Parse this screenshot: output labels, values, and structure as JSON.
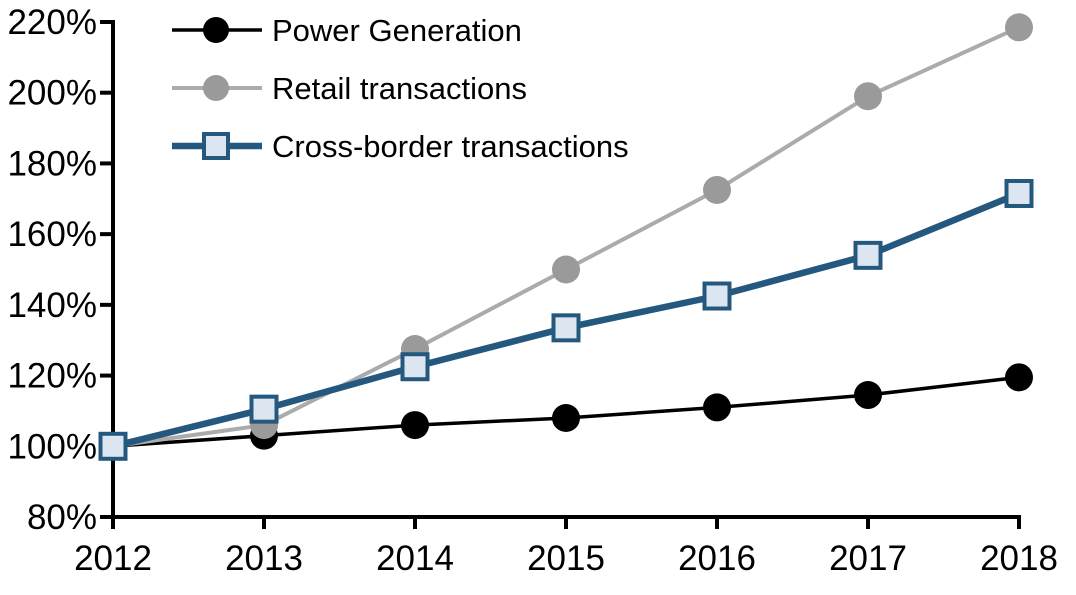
{
  "chart_data": {
    "type": "line",
    "title": "",
    "xlabel": "",
    "ylabel": "",
    "x": [
      2012,
      2013,
      2014,
      2015,
      2016,
      2017,
      2018
    ],
    "x_tick_labels": [
      "2012",
      "2013",
      "2014",
      "2015",
      "2016",
      "2017",
      "2018"
    ],
    "ylim": [
      80,
      220
    ],
    "ytick_step": 20,
    "ytick_suffix": "%",
    "grid": false,
    "legend_position": "top-left-inside",
    "axis_color": "#000000",
    "background_color": "#ffffff",
    "series": [
      {
        "name": "Power Generation",
        "values": [
          100,
          103,
          106,
          108,
          111,
          114.5,
          119.5
        ],
        "line_color": "#000000",
        "line_width": 3.5,
        "marker": "circle",
        "marker_fill": "#000000",
        "marker_stroke": "none",
        "marker_size": 28
      },
      {
        "name": "Retail transactions",
        "values": [
          100,
          106,
          127.5,
          150,
          172.5,
          199,
          218.5
        ],
        "line_color": "#ababab",
        "line_width": 4,
        "marker": "circle",
        "marker_fill": "#9a9a9a",
        "marker_stroke": "none",
        "marker_size": 28
      },
      {
        "name": "Cross-border transactions",
        "values": [
          100,
          110.5,
          122.5,
          133.5,
          142.5,
          154,
          171.5
        ],
        "line_color": "#25587e",
        "line_width": 6.5,
        "marker": "square",
        "marker_fill": "#dce6f1",
        "marker_stroke": "#25587e",
        "marker_size": 25
      }
    ]
  }
}
